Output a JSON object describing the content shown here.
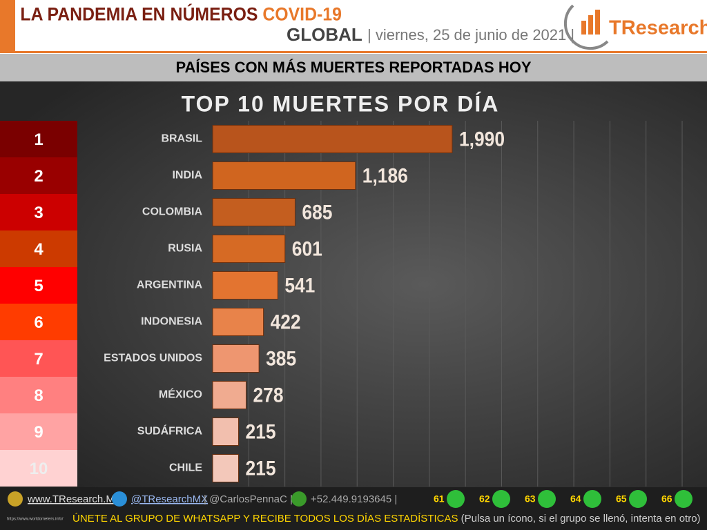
{
  "header": {
    "title": "LA PANDEMIA EN NÚMEROS",
    "title_highlight": "COVID-19",
    "scope": "GLOBAL",
    "date": "| viernes, 25 de junio de 2021 |",
    "brand": "TResearch"
  },
  "banner": "PAÍSES CON MÁS MUERTES REPORTADAS HOY",
  "chart_data": {
    "type": "bar",
    "orientation": "horizontal",
    "title": "TOP 10 MUERTES POR DÍA",
    "ranks": [
      "1",
      "2",
      "3",
      "4",
      "5",
      "6",
      "7",
      "8",
      "9",
      "10"
    ],
    "rank_colors": [
      "#7a0000",
      "#990000",
      "#cc0000",
      "#cc3a00",
      "#ff0000",
      "#ff3c00",
      "#ff5555",
      "#ff8080",
      "#ffa3a3",
      "#ffd2d2"
    ],
    "categories": [
      "BRASIL",
      "INDIA",
      "COLOMBIA",
      "RUSIA",
      "ARGENTINA",
      "INDONESIA",
      "ESTADOS UNIDOS",
      "MÉXICO",
      "SUDÁFRICA",
      "CHILE"
    ],
    "values": [
      1990,
      1186,
      685,
      601,
      541,
      422,
      385,
      278,
      215,
      215
    ],
    "value_labels": [
      "1,990",
      "1,186",
      "685",
      "601",
      "541",
      "422",
      "385",
      "278",
      "215",
      "215"
    ],
    "colors": [
      "#b8541c",
      "#d0651f",
      "#c45e1f",
      "#d66a24",
      "#e37430",
      "#e8834a",
      "#ee9670",
      "#f0ab90",
      "#f2bfae",
      "#f3c8ba"
    ],
    "xlim": [
      0,
      3900
    ],
    "grid": true
  },
  "footer": {
    "website": "www.TResearch.Mx",
    "twitter": "@TResearchMX",
    "twitter2": "| @CarlosPennaC |",
    "phone": "+52.449.9193645 |",
    "groups": [
      "61",
      "62",
      "63",
      "64",
      "65",
      "66"
    ],
    "call": "ÚNETE AL GRUPO DE WHATSAPP Y RECIBE TODOS LOS DÍAS ESTADÍSTICAS",
    "note": "(Pulsa un ícono, si el grupo se llenó, intenta en otro)",
    "source": "https://www.worldometers.info/"
  }
}
